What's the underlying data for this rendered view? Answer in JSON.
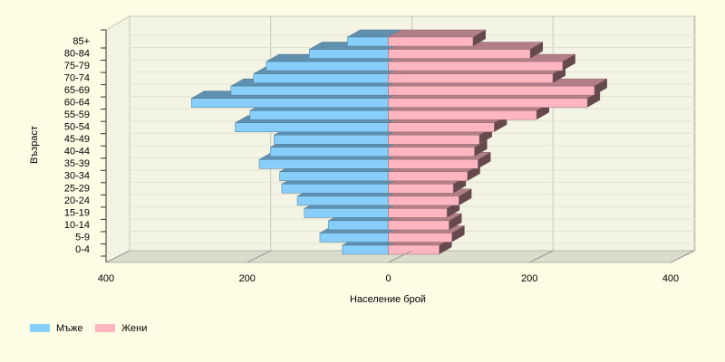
{
  "chart_data": {
    "type": "population-pyramid",
    "x_label": "Население брой",
    "y_label": "Възраст",
    "categories": [
      "0-4",
      "5-9",
      "10-14",
      "15-19",
      "20-24",
      "25-29",
      "30-34",
      "35-39",
      "40-44",
      "45-49",
      "50-54",
      "55-59",
      "60-64",
      "65-69",
      "70-74",
      "75-79",
      "80-84",
      "85+"
    ],
    "series": [
      {
        "name": "Мъже",
        "color": "#87cefa",
        "values": [
          -65,
          -97,
          -85,
          -119,
          -129,
          -151,
          -154,
          -183,
          -167,
          -162,
          -217,
          -196,
          -279,
          -223,
          -191,
          -173,
          -112,
          -58
        ]
      },
      {
        "name": "Жени",
        "color": "#ffb6c1",
        "values": [
          72,
          90,
          86,
          83,
          100,
          92,
          112,
          127,
          122,
          129,
          150,
          210,
          282,
          292,
          233,
          247,
          201,
          120
        ]
      }
    ],
    "xlim": [
      -400,
      400
    ],
    "xticks": [
      {
        "value": -400,
        "label": "400"
      },
      {
        "value": -200,
        "label": "200"
      },
      0,
      200,
      400
    ],
    "grid": true
  }
}
